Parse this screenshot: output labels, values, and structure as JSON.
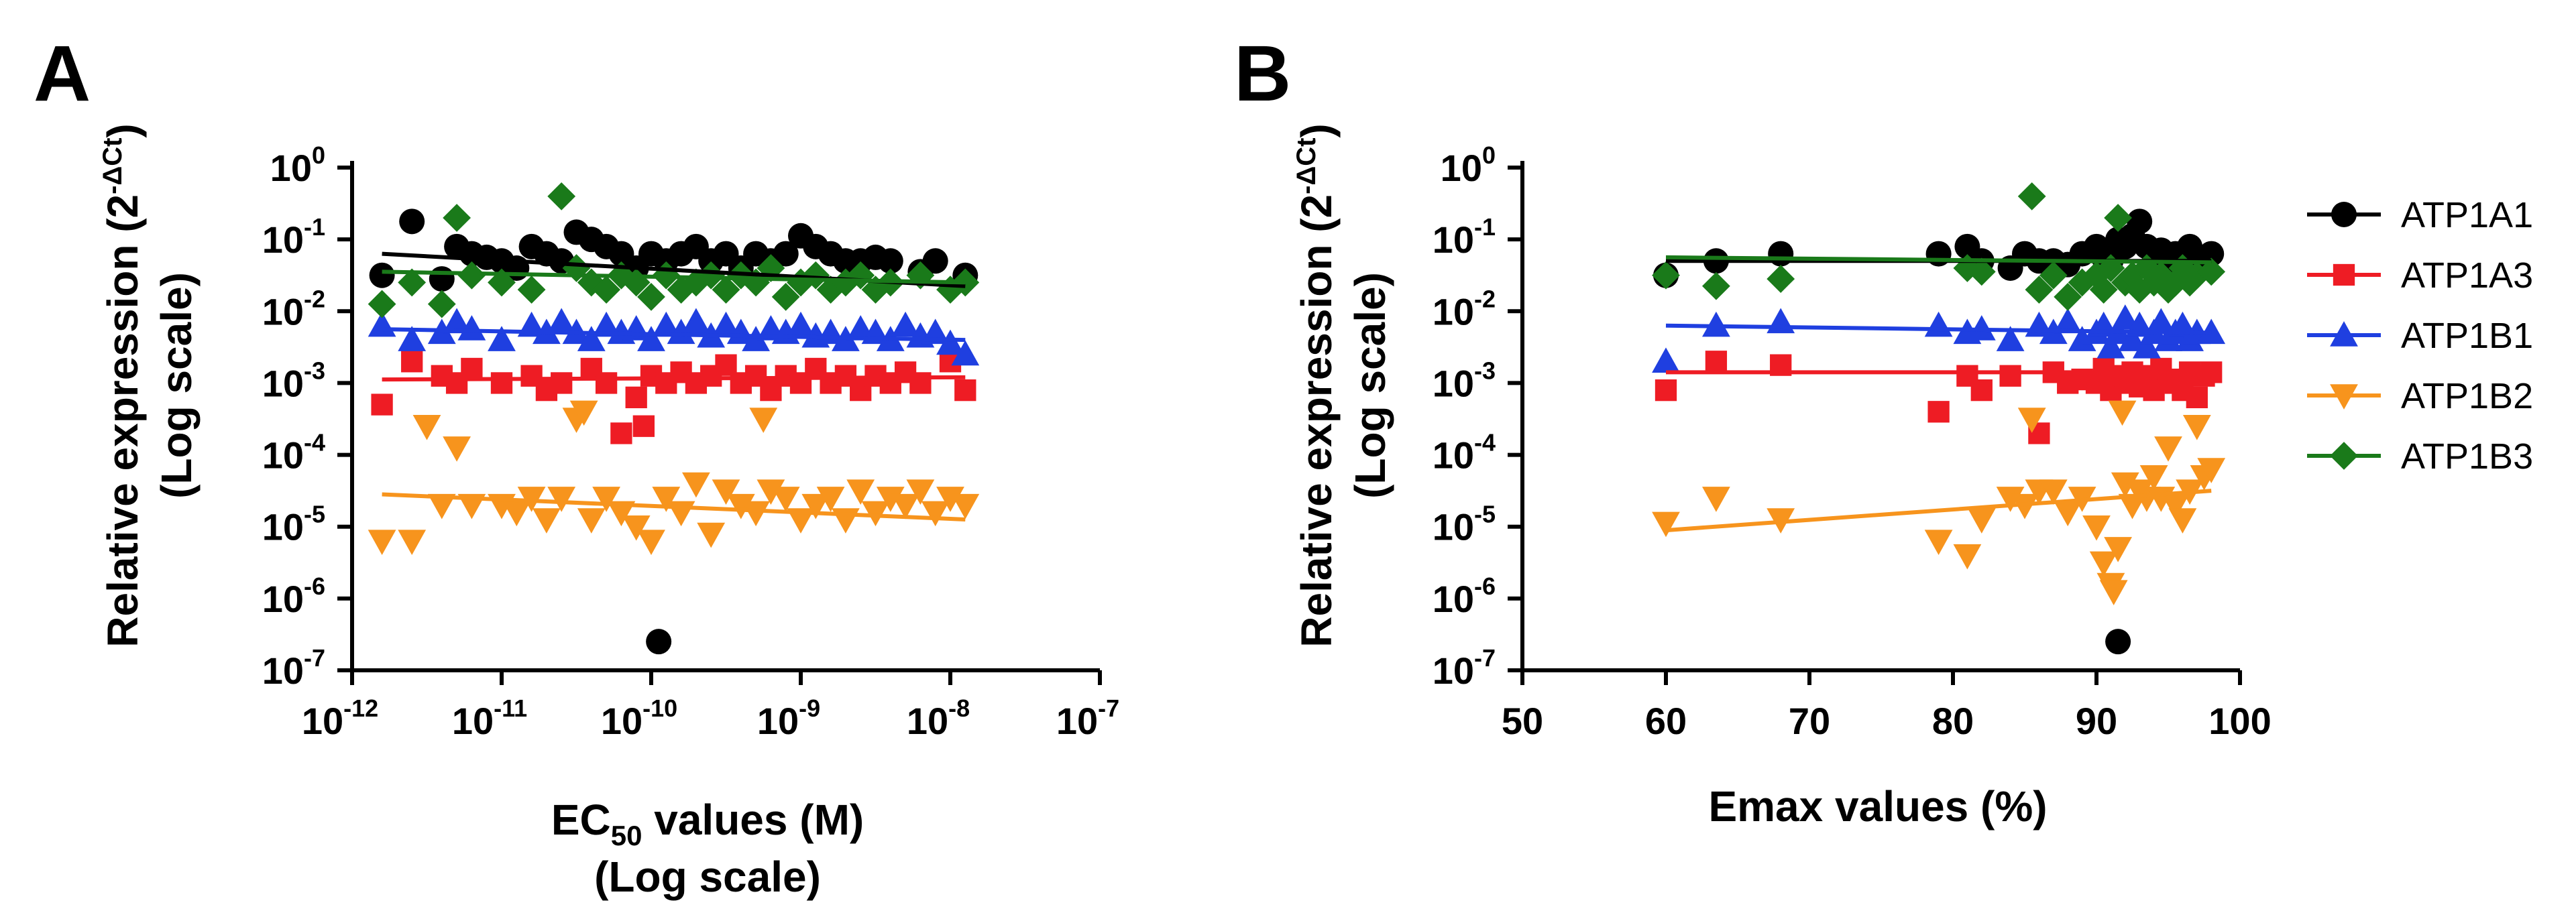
{
  "figure": {
    "panels": [
      {
        "letter": "A",
        "ylabel_line1": "Relative expression (2",
        "ylabel_sup": "-ΔCt",
        "ylabel_close": ")",
        "ylabel_line2": "(Log scale)",
        "xlabel_line1_a": "EC",
        "xlabel_line1_sub": "50",
        "xlabel_line1_b": " values (M)",
        "xlabel_line2": "(Log scale)",
        "x_ticks": [
          {
            "base": "10",
            "exp": "-12"
          },
          {
            "base": "10",
            "exp": "-11"
          },
          {
            "base": "10",
            "exp": "-10"
          },
          {
            "base": "10",
            "exp": "-9"
          },
          {
            "base": "10",
            "exp": "-8"
          },
          {
            "base": "10",
            "exp": "-7"
          }
        ],
        "y_ticks": [
          {
            "base": "10",
            "exp": "-7"
          },
          {
            "base": "10",
            "exp": "-6"
          },
          {
            "base": "10",
            "exp": "-5"
          },
          {
            "base": "10",
            "exp": "-4"
          },
          {
            "base": "10",
            "exp": "-3"
          },
          {
            "base": "10",
            "exp": "-2"
          },
          {
            "base": "10",
            "exp": "-1"
          },
          {
            "base": "10",
            "exp": "0"
          }
        ]
      },
      {
        "letter": "B",
        "ylabel_line1": "Relative expression (2",
        "ylabel_sup": "-ΔCt",
        "ylabel_close": ")",
        "ylabel_line2": "(Log scale)",
        "xlabel": "Emax values (%)",
        "x_ticks": [
          "50",
          "60",
          "70",
          "80",
          "90",
          "100"
        ],
        "y_ticks": [
          {
            "base": "10",
            "exp": "-7"
          },
          {
            "base": "10",
            "exp": "-6"
          },
          {
            "base": "10",
            "exp": "-5"
          },
          {
            "base": "10",
            "exp": "-4"
          },
          {
            "base": "10",
            "exp": "-3"
          },
          {
            "base": "10",
            "exp": "-2"
          },
          {
            "base": "10",
            "exp": "-1"
          },
          {
            "base": "10",
            "exp": "0"
          }
        ]
      }
    ]
  },
  "legend": {
    "position": "right",
    "entries": [
      {
        "name": "ATP1A1",
        "color": "#000000",
        "marker": "circle"
      },
      {
        "name": "ATP1A3",
        "color": "#ee1c24",
        "marker": "square"
      },
      {
        "name": "ATP1B1",
        "color": "#1f3fe0",
        "marker": "triangle-up"
      },
      {
        "name": "ATP1B2",
        "color": "#f7941d",
        "marker": "triangle-down"
      },
      {
        "name": "ATP1B3",
        "color": "#1a7a1a",
        "marker": "diamond"
      }
    ]
  },
  "chart_data": [
    {
      "type": "scatter",
      "panel": "A",
      "title": "",
      "xlabel": "EC50 values (M) (Log scale)",
      "ylabel": "Relative expression (2^-ΔCt) (Log scale)",
      "x_scale": "log10",
      "y_scale": "log10",
      "xlim_log10": [
        -12,
        -7
      ],
      "ylim_log10": [
        -7,
        0
      ],
      "series": [
        {
          "name": "ATP1A1",
          "color": "#000000",
          "marker": "circle",
          "x_log10": [
            -11.8,
            -11.6,
            -11.4,
            -11.3,
            -11.2,
            -11.0,
            -10.8,
            -10.7,
            -10.6,
            -10.5,
            -10.4,
            -10.3,
            -10.2,
            -10.1,
            -10.0,
            -9.9,
            -9.8,
            -9.7,
            -9.6,
            -9.5,
            -9.4,
            -9.3,
            -9.2,
            -9.1,
            -9.0,
            -8.9,
            -8.8,
            -8.7,
            -8.6,
            -8.5,
            -8.4,
            -8.2,
            -8.1,
            -7.9,
            -11.1,
            -10.9,
            -9.95
          ],
          "y_log10": [
            -1.5,
            -0.75,
            -1.55,
            -1.1,
            -1.2,
            -1.3,
            -1.1,
            -1.2,
            -1.3,
            -0.9,
            -1.0,
            -1.1,
            -1.2,
            -1.4,
            -1.2,
            -1.3,
            -1.2,
            -1.1,
            -1.3,
            -1.2,
            -1.4,
            -1.2,
            -1.3,
            -1.2,
            -0.95,
            -1.1,
            -1.2,
            -1.3,
            -1.3,
            -1.25,
            -1.3,
            -1.45,
            -1.3,
            -1.5,
            -1.25,
            -1.4,
            -6.6
          ],
          "fit_log10": {
            "x": [
              -11.8,
              -7.9
            ],
            "y": [
              -1.2,
              -1.65
            ]
          }
        },
        {
          "name": "ATP1A3",
          "color": "#ee1c24",
          "marker": "square",
          "x_log10": [
            -11.8,
            -11.6,
            -11.4,
            -11.3,
            -11.2,
            -11.0,
            -10.8,
            -10.7,
            -10.6,
            -10.4,
            -10.3,
            -10.1,
            -10.0,
            -9.9,
            -9.8,
            -9.7,
            -9.6,
            -9.5,
            -9.4,
            -9.3,
            -9.2,
            -9.1,
            -9.0,
            -8.9,
            -8.8,
            -8.7,
            -8.6,
            -8.5,
            -8.4,
            -8.3,
            -8.2,
            -8.0,
            -7.9,
            -10.2,
            -10.05
          ],
          "y_log10": [
            -3.3,
            -2.7,
            -2.9,
            -3.0,
            -2.8,
            -3.0,
            -2.9,
            -3.1,
            -3.0,
            -2.8,
            -3.0,
            -3.2,
            -2.9,
            -3.0,
            -2.85,
            -3.0,
            -2.9,
            -2.75,
            -3.0,
            -2.9,
            -3.1,
            -2.9,
            -3.0,
            -2.8,
            -3.0,
            -2.9,
            -3.1,
            -2.9,
            -3.0,
            -2.85,
            -3.0,
            -2.7,
            -3.1,
            -3.7,
            -3.6
          ],
          "fit_log10": {
            "x": [
              -11.8,
              -7.9
            ],
            "y": [
              -2.95,
              -2.92
            ]
          }
        },
        {
          "name": "ATP1B1",
          "color": "#1f3fe0",
          "marker": "triangle-up",
          "x_log10": [
            -11.8,
            -11.6,
            -11.4,
            -11.3,
            -11.2,
            -11.0,
            -10.8,
            -10.7,
            -10.6,
            -10.5,
            -10.4,
            -10.3,
            -10.2,
            -10.1,
            -10.0,
            -9.9,
            -9.8,
            -9.7,
            -9.6,
            -9.5,
            -9.4,
            -9.3,
            -9.2,
            -9.1,
            -9.0,
            -8.9,
            -8.8,
            -8.7,
            -8.6,
            -8.5,
            -8.4,
            -8.3,
            -8.2,
            -8.1,
            -8.0,
            -7.9
          ],
          "y_log10": [
            -2.2,
            -2.4,
            -2.3,
            -2.15,
            -2.25,
            -2.4,
            -2.2,
            -2.3,
            -2.15,
            -2.3,
            -2.4,
            -2.2,
            -2.3,
            -2.25,
            -2.4,
            -2.2,
            -2.3,
            -2.15,
            -2.35,
            -2.2,
            -2.3,
            -2.4,
            -2.25,
            -2.3,
            -2.2,
            -2.35,
            -2.3,
            -2.4,
            -2.25,
            -2.3,
            -2.4,
            -2.2,
            -2.35,
            -2.3,
            -2.45,
            -2.6
          ],
          "fit_log10": {
            "x": [
              -11.8,
              -7.9
            ],
            "y": [
              -2.25,
              -2.4
            ]
          }
        },
        {
          "name": "ATP1B2",
          "color": "#f7941d",
          "marker": "triangle-down",
          "x_log10": [
            -11.8,
            -11.6,
            -11.4,
            -11.3,
            -11.2,
            -11.0,
            -10.9,
            -10.8,
            -10.7,
            -10.6,
            -10.5,
            -10.4,
            -10.3,
            -10.2,
            -10.1,
            -10.0,
            -9.9,
            -9.8,
            -9.7,
            -9.6,
            -9.5,
            -9.4,
            -9.3,
            -9.2,
            -9.1,
            -9.0,
            -8.9,
            -8.8,
            -8.7,
            -8.6,
            -8.5,
            -8.4,
            -8.3,
            -8.2,
            -8.1,
            -8.0,
            -7.9,
            -11.5,
            -10.45,
            -9.25
          ],
          "y_log10": [
            -5.2,
            -5.2,
            -4.7,
            -3.9,
            -4.7,
            -4.7,
            -4.8,
            -4.6,
            -4.9,
            -4.6,
            -3.5,
            -4.9,
            -4.6,
            -4.8,
            -5.0,
            -5.2,
            -4.6,
            -4.8,
            -4.4,
            -5.1,
            -4.5,
            -4.7,
            -4.8,
            -4.5,
            -4.6,
            -4.9,
            -4.7,
            -4.6,
            -4.9,
            -4.5,
            -4.8,
            -4.6,
            -4.7,
            -4.5,
            -4.8,
            -4.6,
            -4.7,
            -3.6,
            -3.4,
            -3.5
          ],
          "fit_log10": {
            "x": [
              -11.8,
              -7.9
            ],
            "y": [
              -4.55,
              -4.9
            ]
          }
        },
        {
          "name": "ATP1B3",
          "color": "#1a7a1a",
          "marker": "diamond",
          "x_log10": [
            -11.8,
            -11.6,
            -11.4,
            -11.3,
            -11.2,
            -11.0,
            -10.8,
            -10.6,
            -10.5,
            -10.4,
            -10.3,
            -10.2,
            -10.1,
            -10.0,
            -9.9,
            -9.8,
            -9.7,
            -9.6,
            -9.5,
            -9.4,
            -9.3,
            -9.2,
            -9.1,
            -9.0,
            -8.9,
            -8.8,
            -8.7,
            -8.6,
            -8.5,
            -8.4,
            -8.2,
            -8.0,
            -7.9
          ],
          "y_log10": [
            -1.9,
            -1.6,
            -1.9,
            -0.7,
            -1.5,
            -1.6,
            -1.7,
            -0.4,
            -1.4,
            -1.6,
            -1.7,
            -1.5,
            -1.6,
            -1.8,
            -1.5,
            -1.7,
            -1.6,
            -1.5,
            -1.7,
            -1.5,
            -1.6,
            -1.4,
            -1.8,
            -1.6,
            -1.5,
            -1.7,
            -1.6,
            -1.5,
            -1.7,
            -1.6,
            -1.5,
            -1.7,
            -1.6
          ],
          "fit_log10": {
            "x": [
              -11.8,
              -7.9
            ],
            "y": [
              -1.45,
              -1.6
            ]
          }
        }
      ]
    },
    {
      "type": "scatter",
      "panel": "B",
      "title": "",
      "xlabel": "Emax values (%)",
      "ylabel": "Relative expression (2^-ΔCt) (Log scale)",
      "x_scale": "linear",
      "y_scale": "log10",
      "xlim": [
        50,
        100
      ],
      "ylim_log10": [
        -7,
        0
      ],
      "series": [
        {
          "name": "ATP1A1",
          "color": "#000000",
          "marker": "circle",
          "x": [
            60,
            63.5,
            68,
            79,
            81,
            82,
            84,
            85,
            86,
            87,
            88,
            89,
            90,
            90.5,
            91,
            91.5,
            92,
            92.5,
            93,
            93.5,
            94,
            94.5,
            95,
            95.5,
            96,
            96.5,
            97,
            98,
            91.5
          ],
          "y_log10": [
            -1.5,
            -1.3,
            -1.2,
            -1.2,
            -1.1,
            -1.3,
            -1.4,
            -1.2,
            -1.3,
            -1.3,
            -1.35,
            -1.2,
            -1.1,
            -1.25,
            -1.3,
            -1.0,
            -1.1,
            -0.95,
            -0.75,
            -1.1,
            -1.2,
            -1.15,
            -1.3,
            -1.2,
            -1.3,
            -1.1,
            -1.35,
            -1.2,
            -6.6
          ],
          "fit": {
            "x": [
              60,
              98
            ],
            "y_log10": [
              -1.3,
              -1.3
            ]
          }
        },
        {
          "name": "ATP1A3",
          "color": "#ee1c24",
          "marker": "square",
          "x": [
            60,
            63.5,
            68,
            79,
            81,
            82,
            84,
            86,
            87,
            88,
            89,
            90,
            90.5,
            91,
            91.5,
            92,
            92.5,
            93,
            93.5,
            94,
            94.5,
            95,
            95.5,
            96,
            96.5,
            97,
            97.5,
            98
          ],
          "y_log10": [
            -3.1,
            -2.7,
            -2.75,
            -3.4,
            -2.9,
            -3.1,
            -2.9,
            -3.7,
            -2.85,
            -3.0,
            -2.95,
            -3.0,
            -2.8,
            -3.1,
            -2.9,
            -3.0,
            -2.85,
            -3.05,
            -2.9,
            -3.1,
            -2.8,
            -2.95,
            -3.0,
            -3.1,
            -2.85,
            -3.2,
            -2.9,
            -2.85
          ],
          "fit": {
            "x": [
              60,
              98
            ],
            "y_log10": [
              -2.85,
              -2.85
            ]
          }
        },
        {
          "name": "ATP1B1",
          "color": "#1f3fe0",
          "marker": "triangle-up",
          "x": [
            60,
            63.5,
            68,
            79,
            81,
            82,
            84,
            86,
            87,
            88,
            89,
            90,
            90.5,
            91,
            91.5,
            92,
            92.5,
            93,
            93.5,
            94,
            94.5,
            95,
            95.5,
            96,
            96.5,
            97,
            98
          ],
          "y_log10": [
            -2.7,
            -2.2,
            -2.15,
            -2.2,
            -2.3,
            -2.25,
            -2.4,
            -2.2,
            -2.3,
            -2.15,
            -2.4,
            -2.3,
            -2.2,
            -2.5,
            -2.3,
            -2.1,
            -2.4,
            -2.2,
            -2.5,
            -2.3,
            -2.15,
            -2.4,
            -2.3,
            -2.2,
            -2.4,
            -2.3,
            -2.3
          ],
          "fit": {
            "x": [
              60,
              98
            ],
            "y_log10": [
              -2.2,
              -2.3
            ]
          }
        },
        {
          "name": "ATP1B2",
          "color": "#f7941d",
          "marker": "triangle-down",
          "x": [
            60,
            63.5,
            68,
            79,
            81,
            82,
            84,
            85,
            86,
            87,
            88,
            89,
            90,
            90.5,
            91,
            91.5,
            92,
            92.5,
            93,
            93.5,
            94,
            94.5,
            95,
            95.5,
            96,
            96.5,
            97,
            97.5,
            98,
            85.5,
            91.2,
            91.8
          ],
          "y_log10": [
            -4.95,
            -4.6,
            -4.9,
            -5.2,
            -5.4,
            -4.9,
            -4.6,
            -4.7,
            -4.5,
            -4.5,
            -4.8,
            -4.6,
            -5.0,
            -5.5,
            -5.8,
            -5.3,
            -4.4,
            -4.7,
            -4.5,
            -4.6,
            -4.3,
            -4.6,
            -3.9,
            -4.7,
            -4.9,
            -4.5,
            -3.6,
            -4.3,
            -4.2,
            -3.5,
            -5.9,
            -3.4
          ],
          "fit": {
            "x": [
              60,
              98
            ],
            "y_log10": [
              -5.05,
              -4.5
            ]
          }
        },
        {
          "name": "ATP1B3",
          "color": "#1a7a1a",
          "marker": "diamond",
          "x": [
            60,
            63.5,
            68,
            81,
            82,
            85.5,
            86,
            87,
            88,
            89,
            90,
            90.5,
            91,
            91.5,
            92,
            92.5,
            93,
            93.5,
            94,
            94.5,
            95,
            95.5,
            96,
            96.5,
            97,
            98
          ],
          "y_log10": [
            -1.5,
            -1.65,
            -1.55,
            -1.4,
            -1.45,
            -0.4,
            -1.7,
            -1.5,
            -1.8,
            -1.6,
            -1.5,
            -1.7,
            -1.4,
            -0.7,
            -1.6,
            -1.5,
            -1.7,
            -1.4,
            -1.6,
            -1.5,
            -1.7,
            -1.6,
            -1.4,
            -1.6,
            -1.5,
            -1.45
          ],
          "fit": {
            "x": [
              60,
              98
            ],
            "y_log10": [
              -1.25,
              -1.32
            ]
          }
        }
      ]
    }
  ]
}
